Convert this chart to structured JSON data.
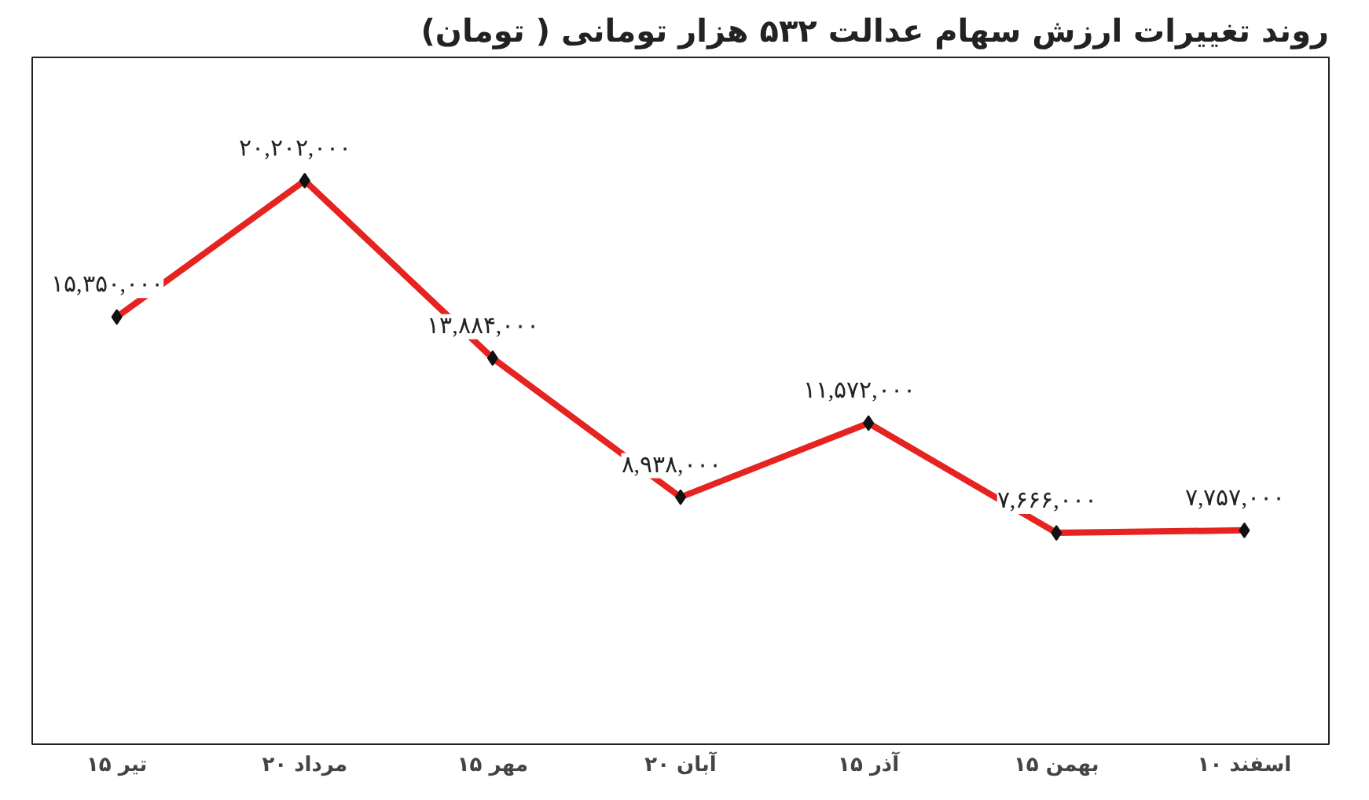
{
  "chart_data": {
    "type": "line",
    "title": "روند تغییرات ارزش سهام عدالت ۵۳۲ هزار تومانی ( تومان)",
    "categories": [
      "۱۵ تیر",
      "۲۰ مرداد",
      "۱۵ مهر",
      "۲۰ آبان",
      "۱۵ آذر",
      "۱۵ بهمن",
      "۱۰ اسفند"
    ],
    "series": [
      {
        "color": "#e52421",
        "values": [
          15350000,
          20202000,
          13884000,
          8938000,
          11572000,
          7666000,
          7757000
        ],
        "value_labels": [
          "۱۵,۳۵۰,۰۰۰",
          "۲۰,۲۰۲,۰۰۰",
          "۱۳,۸۸۴,۰۰۰",
          "۸,۹۳۸,۰۰۰",
          "۱۱,۵۷۲,۰۰۰",
          "۷,۶۶۶,۰۰۰",
          "۷,۷۵۷,۰۰۰"
        ]
      }
    ],
    "marker": "diamond",
    "line_style": "solid"
  }
}
